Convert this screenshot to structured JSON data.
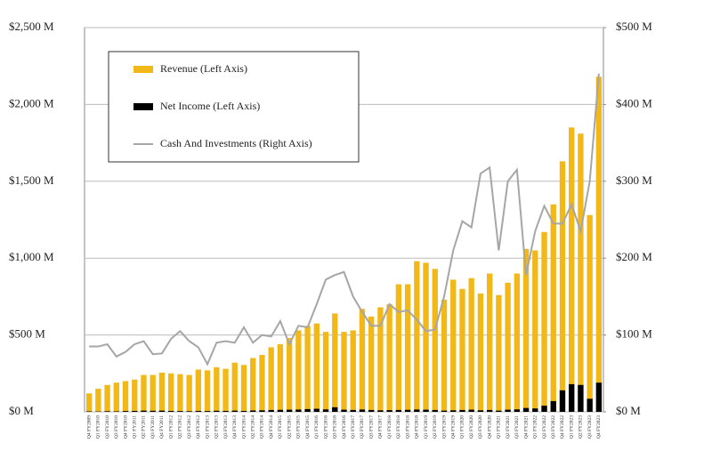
{
  "chart_data": {
    "type": "bar_line",
    "categories": [
      "Q4 FY2009",
      "Q1 FY2010",
      "Q2 FY2010",
      "Q3 FY2010",
      "Q4 FY2010",
      "Q1 FY2011",
      "Q2 FY2011",
      "Q3 FY2011",
      "Q4 FY2011",
      "Q1 FY2012",
      "Q2 FY2012",
      "Q3 FY2012",
      "Q4 FY2012",
      "Q1 FY2013",
      "Q2 FY2013",
      "Q3 FY2013",
      "Q4 FY2013",
      "Q1 FY2014",
      "Q2 FY2014",
      "Q3 FY2014",
      "Q4 FY2014",
      "Q1 FY2015",
      "Q2 FY2015",
      "Q3 FY2015",
      "Q4 FY2015",
      "Q1 FY2016",
      "Q2 FY2016",
      "Q3 FY2016",
      "Q4 FY2016",
      "Q1 FY2017",
      "Q2 FY2017",
      "Q3 FY2017",
      "Q4 FY2017",
      "Q1 FY2018",
      "Q2 FY2018",
      "Q3 FY2018",
      "Q4 FY2018",
      "Q1 FY2019",
      "Q2 FY2019",
      "Q3 FY2019",
      "Q4 FY2019",
      "Q1 FY2020",
      "Q2 FY2020",
      "Q3 FY2020",
      "Q4 FY2020",
      "Q1 FY2021",
      "Q2 FY2021",
      "Q3 FY2021",
      "Q4 FY2021",
      "Q1 FY2022",
      "Q2 FY2022",
      "Q3 FY2022",
      "Q4 FY2022",
      "Q1 FY2023",
      "Q2 FY2023",
      "Q3 FY2023",
      "Q4 FY2023"
    ],
    "series": [
      {
        "name": "Revenue (Left Axis)",
        "color": "#f2b818",
        "kind": "bar",
        "axis": "y",
        "values": [
          120,
          150,
          175,
          190,
          200,
          210,
          240,
          240,
          255,
          250,
          245,
          240,
          275,
          270,
          290,
          280,
          320,
          305,
          350,
          370,
          420,
          440,
          480,
          530,
          560,
          575,
          520,
          640,
          520,
          530,
          670,
          620,
          680,
          700,
          830,
          830,
          980,
          970,
          930,
          730,
          860,
          800,
          870,
          770,
          900,
          760,
          840,
          900,
          1060,
          1050,
          1170,
          1350,
          1630,
          1850,
          1810,
          1280,
          2180
        ]
      },
      {
        "name": "Net Income (Left Axis)",
        "color": "#000000",
        "kind": "bar",
        "axis": "y",
        "values": [
          3,
          2,
          4,
          3,
          5,
          6,
          8,
          7,
          8,
          6,
          5,
          4,
          6,
          5,
          7,
          6,
          8,
          6,
          9,
          10,
          12,
          13,
          14,
          15,
          18,
          20,
          16,
          30,
          14,
          12,
          15,
          12,
          10,
          11,
          12,
          13,
          15,
          14,
          12,
          8,
          10,
          12,
          14,
          10,
          12,
          8,
          14,
          16,
          25,
          22,
          40,
          70,
          140,
          180,
          175,
          85,
          190
        ]
      },
      {
        "name": "Cash And Investments (Right Axis)",
        "color": "#a6a6a6",
        "kind": "line",
        "axis": "y2",
        "values": [
          85,
          85,
          88,
          72,
          78,
          88,
          92,
          75,
          76,
          95,
          105,
          92,
          84,
          62,
          90,
          92,
          90,
          110,
          90,
          100,
          98,
          118,
          88,
          112,
          110,
          140,
          172,
          178,
          182,
          150,
          130,
          112,
          112,
          140,
          130,
          132,
          120,
          105,
          107,
          150,
          210,
          248,
          240,
          310,
          318,
          210,
          300,
          315,
          178,
          235,
          268,
          245,
          245,
          270,
          235,
          300,
          440
        ]
      }
    ],
    "ylim": [
      0,
      2500
    ],
    "yticks": [
      {
        "value": 0,
        "label": "$0 M"
      },
      {
        "value": 500,
        "label": "$500 M"
      },
      {
        "value": 1000,
        "label": "$1,000 M"
      },
      {
        "value": 1500,
        "label": "$1,500 M"
      },
      {
        "value": 2000,
        "label": "$2,000 M"
      },
      {
        "value": 2500,
        "label": "$2,500 M"
      }
    ],
    "y2lim": [
      0,
      500
    ],
    "y2ticks": [
      {
        "value": 0,
        "label": "$0 M"
      },
      {
        "value": 100,
        "label": "$100 M"
      },
      {
        "value": 200,
        "label": "$200 M"
      },
      {
        "value": 300,
        "label": "$300 M"
      },
      {
        "value": 400,
        "label": "$400 M"
      },
      {
        "value": 500,
        "label": "$500 M"
      }
    ],
    "grid": true
  }
}
